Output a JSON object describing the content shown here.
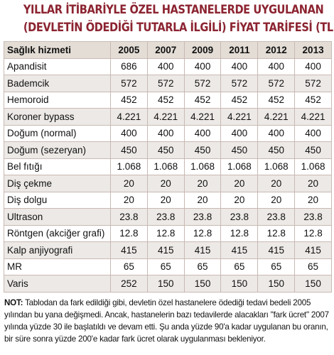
{
  "title": {
    "line1": "YILLAR İTİBARİYLE ÖZEL HASTANELERDE UYGULANAN",
    "line2": "(DEVLETİN ÖDEDİĞİ TUTARLA İLGİLİ) FİYAT TARİFESİ (TL)"
  },
  "table": {
    "headers": [
      "Sağlık hizmeti",
      "2005",
      "2007",
      "2009",
      "2011",
      "2012",
      "2013"
    ],
    "rows": [
      [
        "Apandisit",
        "686",
        "400",
        "400",
        "400",
        "400",
        "400"
      ],
      [
        "Bademcik",
        "572",
        "572",
        "572",
        "572",
        "572",
        "572"
      ],
      [
        "Hemoroid",
        "452",
        "452",
        "452",
        "452",
        "452",
        "452"
      ],
      [
        "Koroner bypass",
        "4.221",
        "4.221",
        "4.221",
        "4.221",
        "4.221",
        "4.221"
      ],
      [
        "Doğum (normal)",
        "400",
        "400",
        "400",
        "400",
        "400",
        "400"
      ],
      [
        "Doğum (sezeryan)",
        "450",
        "450",
        "450",
        "450",
        "450",
        "450"
      ],
      [
        "Bel fıtığı",
        "1.068",
        "1.068",
        "1.068",
        "1.068",
        "1.068",
        "1.068"
      ],
      [
        "Diş çekme",
        "20",
        "20",
        "20",
        "20",
        "20",
        "20"
      ],
      [
        "Diş dolgu",
        "20",
        "20",
        "20",
        "20",
        "20",
        "20"
      ],
      [
        "Ultrason",
        "23.8",
        "23.8",
        "23.8",
        "23.8",
        "23.8",
        "23.8"
      ],
      [
        "Röntgen (akciğer grafi)",
        "12.8",
        "12.8",
        "12.8",
        "12.8",
        "12.8",
        "12.8"
      ],
      [
        "Kalp anjiyografi",
        "415",
        "415",
        "415",
        "415",
        "415",
        "415"
      ],
      [
        "MR",
        "65",
        "65",
        "65",
        "65",
        "65",
        "65"
      ],
      [
        "Varis",
        "252",
        "150",
        "150",
        "150",
        "150",
        "150"
      ]
    ]
  },
  "note": {
    "label": "NOT:",
    "text": "Tablodan da fark edildiği gibi, devletin özel hastanelere ödediği tedavi bedeli 2005 yılından bu yana değişmedi. Ancak, hastanelerin bazı tedavilerde alacakları \"fark ücret\" 2007 yılında yüzde 30 ile başlatıldı ve devam etti. Şu anda yüzde 90'a kadar uygulanan bu oranın, bir süre sonra yüzde 200'e kadar fark ücret olarak uygulanması bekleniyor."
  },
  "colors": {
    "title": "#8c2431",
    "header_bg": "#e3ddd6",
    "row_alt_bg": "#ece9e6",
    "border": "#c9b9b3"
  }
}
